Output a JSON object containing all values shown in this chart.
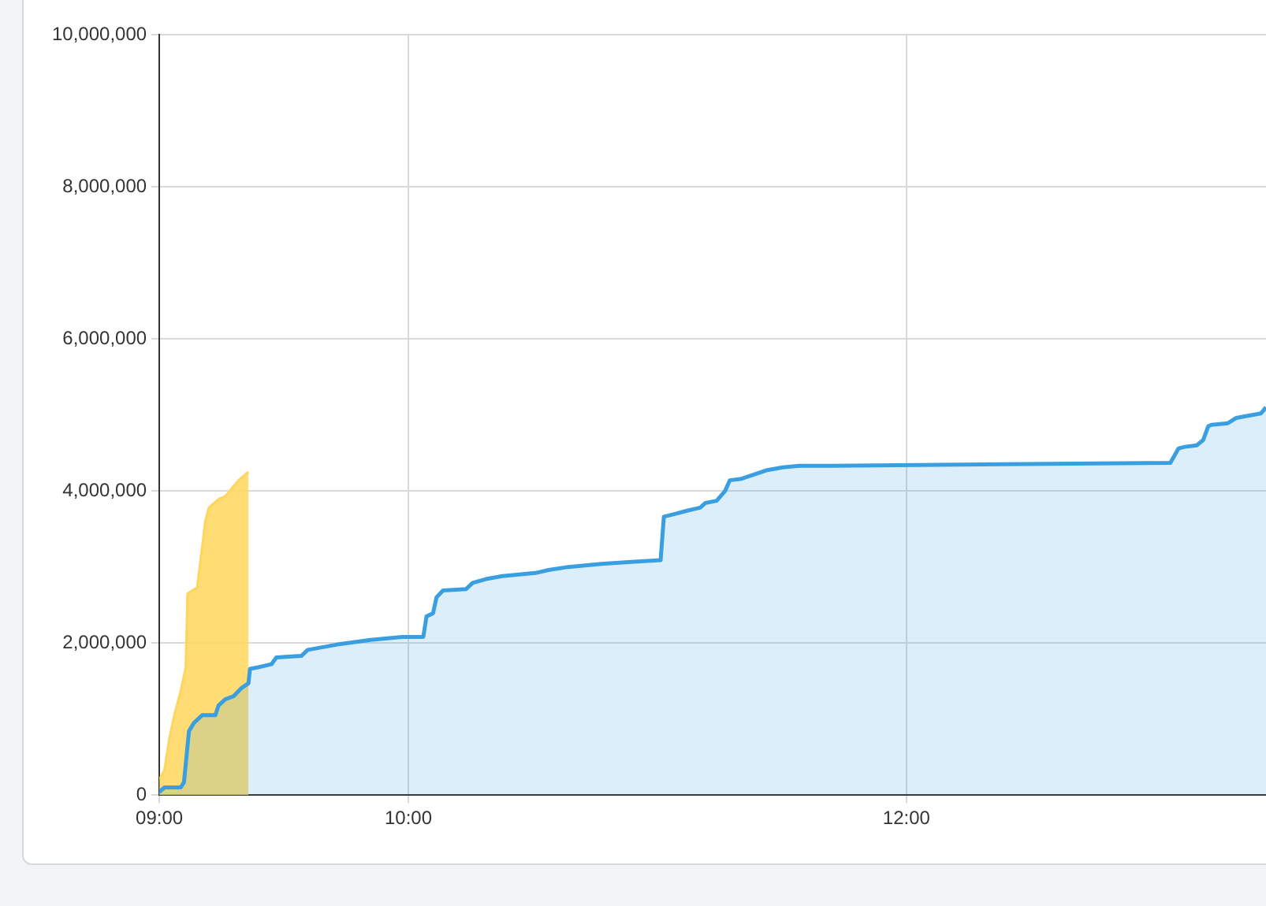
{
  "chart_data": {
    "type": "area",
    "series": [
      {
        "color": "#3a9fe0",
        "x": [
          9.0,
          9.02,
          9.086,
          9.099,
          9.119,
          9.139,
          9.172,
          9.225,
          9.238,
          9.265,
          9.298,
          9.331,
          9.358,
          9.364,
          9.397,
          9.45,
          9.47,
          9.57,
          9.596,
          9.715,
          9.848,
          9.98,
          10.06,
          10.073,
          10.099,
          10.113,
          10.139,
          10.232,
          10.258,
          10.311,
          10.377,
          10.51,
          10.563,
          10.642,
          10.775,
          10.907,
          11.013,
          11.026,
          11.073,
          11.119,
          11.172,
          11.192,
          11.238,
          11.272,
          11.291,
          11.338,
          11.437,
          11.503,
          11.57,
          11.702,
          13.06,
          13.093,
          13.119,
          13.166,
          13.192,
          13.212,
          13.225,
          13.291,
          13.325,
          13.358,
          13.424,
          13.444
        ],
        "values": [
          40000,
          100000,
          100000,
          170000,
          840000,
          950000,
          1050000,
          1050000,
          1180000,
          1260000,
          1300000,
          1410000,
          1470000,
          1660000,
          1680000,
          1720000,
          1810000,
          1830000,
          1910000,
          1980000,
          2040000,
          2080000,
          2080000,
          2350000,
          2390000,
          2600000,
          2690000,
          2710000,
          2790000,
          2840000,
          2880000,
          2920000,
          2960000,
          3000000,
          3040000,
          3070000,
          3090000,
          3660000,
          3700000,
          3740000,
          3780000,
          3840000,
          3870000,
          4000000,
          4140000,
          4160000,
          4270000,
          4310000,
          4330000,
          4330000,
          4370000,
          4560000,
          4580000,
          4600000,
          4670000,
          4850000,
          4870000,
          4890000,
          4960000,
          4980000,
          5020000,
          5100000
        ]
      },
      {
        "color": "#ffd65c",
        "x": [
          9.0,
          9.02,
          9.04,
          9.06,
          9.086,
          9.106,
          9.113,
          9.132,
          9.152,
          9.185,
          9.199,
          9.238,
          9.265,
          9.298,
          9.318,
          9.358
        ],
        "values": [
          210000,
          320000,
          740000,
          1050000,
          1370000,
          1680000,
          2650000,
          2690000,
          2730000,
          3610000,
          3780000,
          3890000,
          3930000,
          4060000,
          4140000,
          4250000
        ]
      }
    ],
    "xlim": [
      9,
      13.444
    ],
    "xticks": [
      {
        "value": 9,
        "label": "09:00"
      },
      {
        "value": 10,
        "label": "10:00"
      },
      {
        "value": 12,
        "label": "12:00"
      }
    ],
    "ylim": [
      0,
      10000000
    ],
    "yticks": [
      {
        "value": 0,
        "label": "0"
      },
      {
        "value": 2000000,
        "label": "2,000,000"
      },
      {
        "value": 4000000,
        "label": "4,000,000"
      },
      {
        "value": 6000000,
        "label": "6,000,000"
      },
      {
        "value": 8000000,
        "label": "8,000,000"
      },
      {
        "value": 10000000,
        "label": "10,000,000"
      }
    ],
    "grid": true,
    "marker": "none",
    "line_style": "solid"
  }
}
